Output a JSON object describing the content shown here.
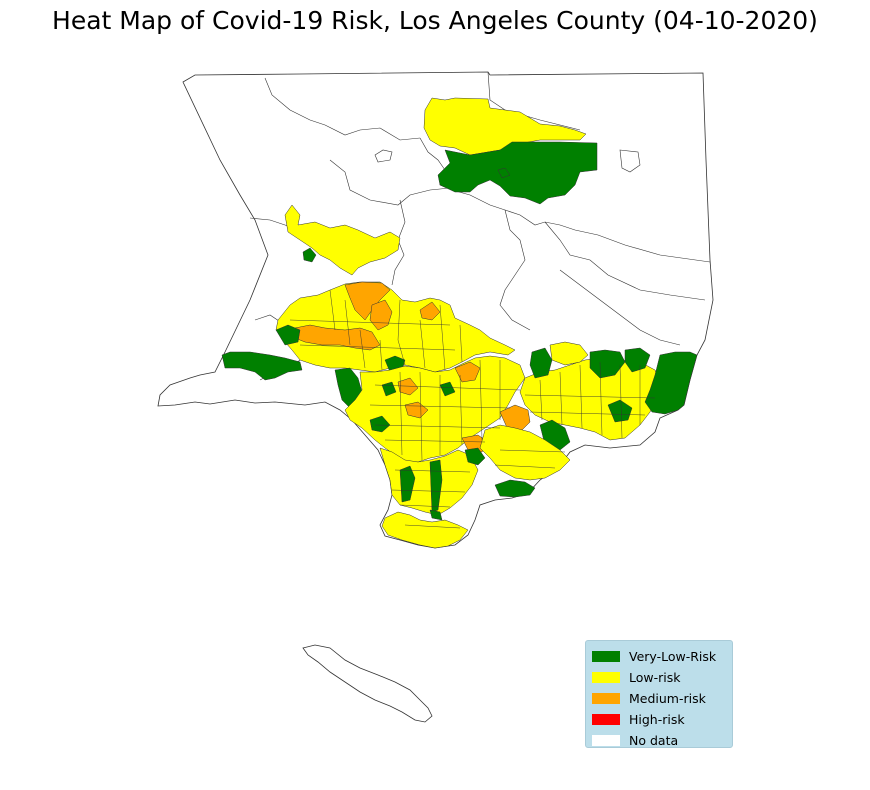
{
  "title": "Heat Map of Covid-19 Risk, Los Angeles County (04-10-2020)",
  "colors": {
    "very_low": "#008000",
    "low": "#ffff00",
    "medium": "#ffa500",
    "high": "#ff0000",
    "no_data": "#ffffff",
    "boundary": "#333333"
  },
  "legend": {
    "placement": "lower-right",
    "items": [
      {
        "label": "Very-Low-Risk",
        "color": "#008000"
      },
      {
        "label": "Low-risk",
        "color": "#ffff00"
      },
      {
        "label": "Medium-risk",
        "color": "#ffa500"
      },
      {
        "label": "High-risk",
        "color": "#ff0000"
      },
      {
        "label": "No data",
        "color": "#ffffff"
      }
    ]
  }
}
